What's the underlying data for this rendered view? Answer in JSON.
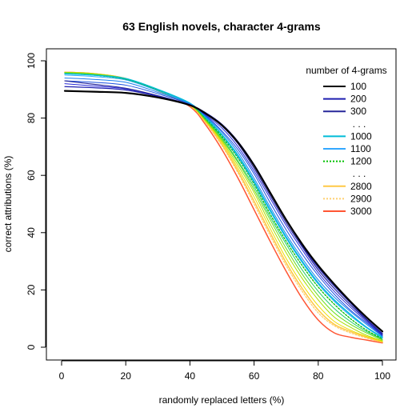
{
  "chart_data": {
    "type": "line",
    "title": "63 English novels, character 4-grams",
    "xlabel": "randomly replaced letters (%)",
    "ylabel": "correct attributions (%)",
    "xlim": [
      0,
      100
    ],
    "ylim": [
      0,
      100
    ],
    "x_ticks": [
      0,
      20,
      40,
      60,
      80,
      100
    ],
    "y_ticks": [
      0,
      20,
      40,
      60,
      80,
      100
    ],
    "grid": false,
    "legend": {
      "title": "number of 4-grams",
      "position": "top-right",
      "entries": [
        {
          "label": "100",
          "color": "#000000",
          "style": "solid"
        },
        {
          "label": "200",
          "color": "#1f1fb0",
          "style": "solid"
        },
        {
          "label": "300",
          "color": "#27279a",
          "style": "solid"
        },
        {
          "label": ". . .",
          "dots": true
        },
        {
          "label": "1000",
          "color": "#00bcd8",
          "style": "solid"
        },
        {
          "label": "1100",
          "color": "#33a8ff",
          "style": "solid"
        },
        {
          "label": "1200",
          "color": "#00c000",
          "style": "dotted"
        },
        {
          "label": ". . .",
          "dots": true
        },
        {
          "label": "2800",
          "color": "#ffc845",
          "style": "solid"
        },
        {
          "label": "2900",
          "color": "#ffd070",
          "style": "dotted"
        },
        {
          "label": "3000",
          "color": "#ff5533",
          "style": "solid"
        }
      ]
    },
    "x": [
      1,
      10,
      20,
      30,
      40,
      45,
      50,
      55,
      60,
      65,
      70,
      75,
      80,
      85,
      90,
      95,
      100
    ],
    "series": [
      {
        "name": "100",
        "color": "#000000",
        "width": 2.2,
        "values": [
          89.5,
          89.2,
          88.8,
          87.2,
          84.5,
          81.5,
          77.5,
          71.5,
          63.5,
          54,
          44.5,
          36,
          28.5,
          22,
          16,
          10.5,
          5.5
        ]
      },
      {
        "name": "200",
        "color": "#1f1fb0",
        "width": 1.2,
        "values": [
          91,
          90.6,
          89.8,
          87.6,
          84.6,
          81.8,
          77.8,
          71.8,
          63.8,
          54.2,
          44.5,
          35.5,
          27.8,
          21.3,
          15.5,
          9.8,
          4.8
        ]
      },
      {
        "name": "300",
        "color": "#27279a",
        "width": 1.2,
        "values": [
          93,
          91.8,
          90.4,
          87.8,
          84.6,
          81.4,
          77.2,
          71,
          62.5,
          53,
          43.5,
          35,
          27,
          20.5,
          14.8,
          9.5,
          4.5
        ]
      },
      {
        "color": "#2a2ad8",
        "width": 1,
        "values": [
          92,
          91.2,
          90.2,
          87.8,
          84.5,
          81,
          76.5,
          70,
          61.5,
          52,
          42.5,
          34,
          26,
          19.5,
          14,
          9,
          4.2
        ]
      },
      {
        "color": "#1a50e0",
        "width": 1,
        "values": [
          93,
          92.5,
          91.5,
          88.5,
          84.8,
          80.8,
          75.5,
          69,
          60.5,
          50.5,
          41,
          32.5,
          25,
          18.5,
          13,
          8.5,
          4
        ]
      },
      {
        "color": "#1c7ff0",
        "width": 1,
        "values": [
          94,
          93.5,
          92.5,
          89,
          85,
          80.5,
          75,
          68,
          59,
          49,
          39.5,
          31,
          23.5,
          17.5,
          12.5,
          8,
          3.8
        ]
      },
      {
        "name": "1000",
        "color": "#00bcd8",
        "width": 1.5,
        "values": [
          95.5,
          95,
          93.8,
          90,
          85.2,
          80.2,
          74.2,
          67,
          58,
          48,
          38.5,
          30,
          22.5,
          16.5,
          11.5,
          7,
          3.5
        ]
      },
      {
        "name": "1100",
        "color": "#33a8ff",
        "width": 1,
        "values": [
          95,
          94.5,
          93.3,
          89.5,
          85,
          80,
          74,
          66.5,
          57.5,
          47.5,
          38,
          29.5,
          22,
          16,
          11,
          6.8,
          3.2
        ]
      },
      {
        "name": "1200",
        "color": "#00c000",
        "width": 1.3,
        "dash": "2,2",
        "values": [
          95.5,
          95,
          93.5,
          89.8,
          85,
          79.8,
          73.5,
          66,
          57,
          46.5,
          37,
          28.5,
          21,
          15,
          10,
          6,
          3
        ]
      },
      {
        "color": "#22cc66",
        "width": 1,
        "values": [
          95.5,
          95,
          93.5,
          89.5,
          84.8,
          79.5,
          73,
          65,
          56,
          45.5,
          36,
          27,
          19.5,
          13.5,
          9,
          5.5,
          2.8
        ]
      },
      {
        "color": "#66dd11",
        "width": 1,
        "values": [
          95.8,
          95.3,
          93.7,
          89.6,
          84.7,
          79.2,
          72.5,
          64.5,
          55,
          44.5,
          34.5,
          25.5,
          18,
          12,
          8,
          5,
          2.5
        ]
      },
      {
        "color": "#aadd00",
        "width": 1,
        "values": [
          96,
          95.5,
          93.8,
          89.6,
          84.6,
          79,
          72,
          63.5,
          54,
          43,
          33,
          24,
          16.5,
          10.5,
          7,
          4.2,
          2.2
        ]
      },
      {
        "color": "#eedd00",
        "width": 1,
        "values": [
          96,
          95.5,
          93.8,
          89.6,
          84.5,
          78.8,
          71.5,
          62.5,
          52.5,
          41.5,
          31,
          22,
          14.5,
          9,
          6,
          3.8,
          2
        ]
      },
      {
        "name": "2800",
        "color": "#ffc845",
        "width": 1.5,
        "values": [
          96,
          95.5,
          93.8,
          89.5,
          84.4,
          78.5,
          70.8,
          61.5,
          51,
          40,
          29.5,
          20.5,
          13,
          8,
          5.5,
          3.5,
          1.8
        ]
      },
      {
        "name": "2900",
        "color": "#ffd070",
        "width": 1.3,
        "dash": "2,2",
        "values": [
          96,
          95.5,
          93.8,
          89.5,
          84.3,
          78.2,
          70.3,
          60.8,
          50,
          39,
          28.5,
          19.5,
          12,
          7.5,
          5,
          3.2,
          1.7
        ]
      },
      {
        "name": "3000",
        "color": "#ff5533",
        "width": 1.5,
        "values": [
          96,
          95.5,
          93.8,
          89.5,
          84,
          77.5,
          69,
          59,
          48,
          37,
          26.5,
          17,
          9.5,
          5,
          3.5,
          2.5,
          1.5
        ]
      }
    ]
  }
}
